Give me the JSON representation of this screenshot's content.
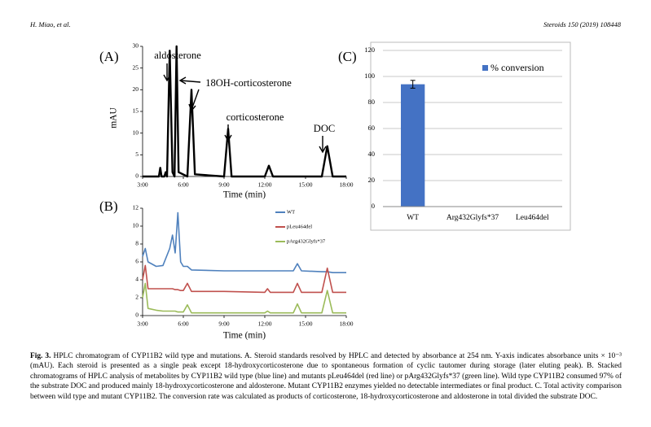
{
  "header": {
    "author": "H. Miao, et al.",
    "journal": "Steroids 150 (2019) 108448"
  },
  "chart_data": [
    {
      "type": "line",
      "label": "(A)",
      "ylabel": "mAU",
      "xlabel": "Time (min)",
      "annotations": [
        "aldosterone",
        "18OH-corticosterone",
        "corticosterone",
        "DOC"
      ],
      "x": [
        3,
        4.0,
        4.2,
        4.3,
        4.4,
        4.6,
        4.7,
        4.8,
        5.0,
        5.2,
        5.35,
        5.5,
        5.65,
        6.3,
        6.6,
        6.85,
        9.0,
        9.3,
        9.55,
        12.0,
        12.3,
        12.6,
        16.2,
        16.6,
        17.0,
        18
      ],
      "values": [
        0,
        0,
        0,
        2,
        0,
        0,
        1,
        0,
        29,
        1,
        0,
        30,
        1,
        0,
        20,
        0.5,
        0,
        11,
        0,
        0,
        2.5,
        0,
        0,
        7,
        0,
        0
      ],
      "color": "#000000",
      "xlim": [
        3,
        18
      ],
      "ylim": [
        0,
        30
      ],
      "xticks": [
        {
          "value": 3,
          "label": "3:00"
        },
        {
          "value": 6,
          "label": "6:00"
        },
        {
          "value": 9,
          "label": "9:00"
        },
        {
          "value": 12,
          "label": "12:00"
        },
        {
          "value": 15,
          "label": "15:00"
        },
        {
          "value": 18,
          "label": "18:00"
        }
      ],
      "yticks": [
        0,
        5,
        10,
        15,
        20,
        25,
        30
      ]
    },
    {
      "type": "line",
      "label": "(B)",
      "xlabel": "Time (min)",
      "legend": "upper right",
      "x": [
        3,
        3.2,
        3.4,
        4.0,
        4.5,
        5.0,
        5.2,
        5.4,
        5.6,
        5.8,
        6.0,
        6.3,
        6.6,
        9.0,
        12.0,
        12.2,
        12.4,
        14.1,
        14.4,
        14.7,
        16.2,
        16.6,
        17.0,
        18
      ],
      "series": [
        {
          "name": "WT",
          "color": "#4f81bd",
          "values": [
            6.6,
            7.5,
            6.0,
            5.5,
            5.6,
            7.5,
            9.0,
            7.0,
            11.5,
            6.0,
            5.5,
            5.5,
            5.1,
            5.0,
            5.0,
            5.0,
            5.0,
            5.0,
            5.8,
            5.0,
            4.9,
            4.9,
            4.8,
            4.8
          ]
        },
        {
          "name": "pLeu464del",
          "color": "#c0504d",
          "values": [
            4.0,
            5.6,
            3.0,
            3.0,
            3.0,
            3.0,
            3.0,
            2.9,
            2.9,
            2.8,
            2.8,
            3.6,
            2.7,
            2.7,
            2.6,
            3.0,
            2.6,
            2.6,
            3.6,
            2.6,
            2.6,
            5.3,
            2.6,
            2.6
          ]
        },
        {
          "name": "pArg432Glyfs*37",
          "color": "#9bbb59",
          "values": [
            2.0,
            3.6,
            0.8,
            0.6,
            0.5,
            0.5,
            0.5,
            0.5,
            0.4,
            0.4,
            0.4,
            1.2,
            0.3,
            0.3,
            0.3,
            0.5,
            0.3,
            0.3,
            1.3,
            0.3,
            0.3,
            2.8,
            0.3,
            0.3
          ]
        }
      ],
      "xlim": [
        3,
        18
      ],
      "ylim": [
        0,
        12
      ],
      "xticks": [
        {
          "value": 3,
          "label": "3:00"
        },
        {
          "value": 6,
          "label": "6:00"
        },
        {
          "value": 9,
          "label": "9:00"
        },
        {
          "value": 12,
          "label": "12:00"
        },
        {
          "value": 15,
          "label": "15:00"
        },
        {
          "value": 18,
          "label": "18:00"
        }
      ],
      "yticks": [
        0,
        2,
        4,
        6,
        8,
        10,
        12
      ]
    },
    {
      "type": "bar",
      "label": "(C)",
      "legend_label": "% conversion",
      "categories": [
        "WT",
        "Arg432Glyfs*37",
        "Leu464del"
      ],
      "values": [
        94,
        0,
        0
      ],
      "errors": [
        3,
        0,
        0
      ],
      "color": "#4472c4",
      "ylim": [
        0,
        120
      ],
      "yticks": [
        0,
        20,
        40,
        60,
        80,
        100,
        120
      ],
      "grid": true
    }
  ],
  "caption": {
    "label": "Fig. 3.",
    "text": "HPLC chromatogram of CYP11B2 wild type and mutations. A. Steroid standards resolved by HPLC and detected by absorbance at 254 nm. Y-axis indicates absorbance units × 10⁻³ (mAU). Each steroid is presented as a single peak except 18-hydroxycorticosterone due to spontaneous formation of cyclic tautomer during storage (later eluting peak). B. Stacked chromatograms of HPLC analysis of metabolites by CYP11B2 wild type (blue line) and mutants pLeu464del (red line) or pArg432Glyfs*37 (green line). Wild type CYP11B2 consumed 97% of the substrate DOC and produced mainly 18-hydroxycorticosterone and aldosterone. Mutant CYP11B2 enzymes yielded no detectable intermediates or final product. C. Total activity comparison between wild type and mutant CYP11B2. The conversion rate was calculated as products of corticosterone, 18-hydroxycorticosterone and aldosterone in total divided the substrate DOC."
  }
}
